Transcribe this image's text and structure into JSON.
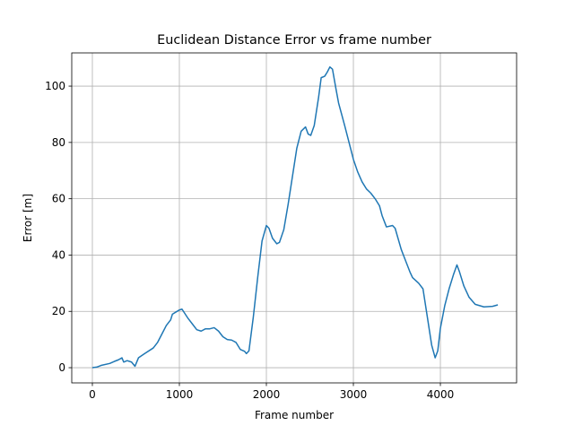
{
  "chart_data": {
    "type": "line",
    "title": "Euclidean Distance Error vs frame number",
    "xlabel": "Frame number",
    "ylabel": "Error [m]",
    "x": [
      0,
      50,
      100,
      200,
      250,
      300,
      340,
      360,
      400,
      450,
      490,
      530,
      600,
      700,
      750,
      800,
      850,
      900,
      920,
      1000,
      1030,
      1100,
      1150,
      1200,
      1250,
      1300,
      1350,
      1400,
      1450,
      1500,
      1550,
      1600,
      1650,
      1700,
      1750,
      1770,
      1800,
      1850,
      1900,
      1950,
      2000,
      2030,
      2070,
      2120,
      2150,
      2200,
      2250,
      2300,
      2350,
      2400,
      2450,
      2480,
      2510,
      2550,
      2600,
      2630,
      2670,
      2700,
      2730,
      2760,
      2800,
      2830,
      2900,
      2950,
      3000,
      3050,
      3100,
      3150,
      3200,
      3250,
      3300,
      3330,
      3380,
      3450,
      3480,
      3550,
      3600,
      3650,
      3680,
      3750,
      3800,
      3850,
      3900,
      3940,
      3970,
      4000,
      4050,
      4100,
      4150,
      4190,
      4220,
      4270,
      4330,
      4400,
      4500,
      4600,
      4660
    ],
    "series": [
      {
        "name": "Error",
        "color": "#1f77b4",
        "values": [
          0,
          0.2,
          0.8,
          1.5,
          2.2,
          2.8,
          3.5,
          2.0,
          2.5,
          2.0,
          0.5,
          3.5,
          5,
          7,
          9,
          12,
          15,
          17,
          19,
          20.5,
          20.8,
          17.5,
          15.5,
          13.5,
          13,
          13.8,
          13.8,
          14.2,
          13,
          11,
          10,
          9.8,
          9,
          6.5,
          5.8,
          5,
          6,
          18,
          32,
          45,
          50.5,
          49.5,
          46,
          44,
          44.5,
          49,
          58,
          68,
          78,
          84,
          85.5,
          83,
          82.5,
          86,
          96,
          103,
          103.5,
          105,
          106.8,
          106,
          99,
          94,
          86,
          80,
          74,
          69.5,
          66,
          63.5,
          62,
          60,
          57.5,
          54,
          50,
          50.5,
          49.5,
          42,
          38,
          34,
          32,
          30,
          28,
          18,
          8,
          3.5,
          6,
          14,
          22,
          28,
          33,
          36.5,
          34,
          29,
          25,
          22.5,
          21.6,
          21.8,
          22.3
        ]
      }
    ],
    "xlim": [
      -237,
      4876
    ],
    "ylim": [
      -5.4,
      111.8
    ],
    "xticks": [
      0,
      1000,
      2000,
      3000,
      4000
    ],
    "yticks": [
      0,
      20,
      40,
      60,
      80,
      100
    ],
    "grid": true
  }
}
